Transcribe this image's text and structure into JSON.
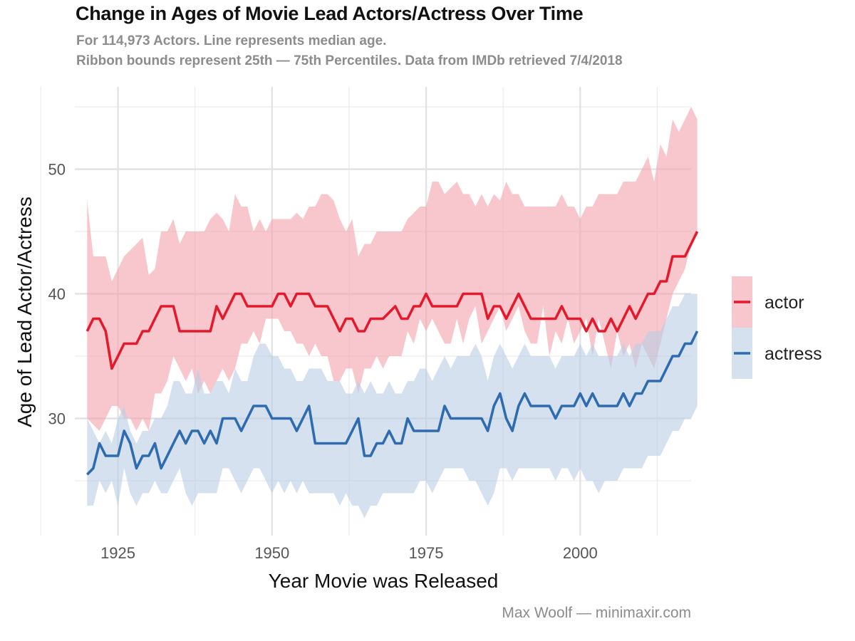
{
  "chart_data": {
    "type": "line",
    "title": "Change in Ages of Movie Lead Actors/Actress Over Time",
    "subtitle": [
      "For 114,973 Actors. Line represents median age.",
      "Ribbon bounds represent 25th — 75th Percentiles. Data from IMDb retrieved 7/4/2018"
    ],
    "xlabel": "Year Movie was Released",
    "ylabel": "Age of Lead Actor/Actress",
    "caption": "Max Woolf — minimaxir.com",
    "xlim": [
      1918,
      2018
    ],
    "ylim": [
      20.6,
      56.6
    ],
    "x_ticks": [
      1925,
      1950,
      1975,
      2000
    ],
    "y_ticks": [
      30,
      40,
      50
    ],
    "grid": true,
    "legend_position": "right",
    "series": [
      {
        "name": "actor",
        "color": "#E41A2C",
        "ribbon_color": "#F4A2AE",
        "points": [
          [
            1920,
            37,
            47.5,
            30
          ],
          [
            1921,
            38,
            43,
            29.5
          ],
          [
            1922,
            38,
            43,
            29
          ],
          [
            1923,
            37,
            43,
            30
          ],
          [
            1924,
            34,
            41,
            31
          ],
          [
            1925,
            35,
            42,
            31
          ],
          [
            1926,
            36,
            43,
            30
          ],
          [
            1927,
            36,
            43.5,
            30
          ],
          [
            1928,
            36,
            44,
            29
          ],
          [
            1929,
            37,
            44.5,
            30
          ],
          [
            1930,
            37,
            41.5,
            29
          ],
          [
            1931,
            38,
            42,
            32
          ],
          [
            1932,
            39,
            45,
            32
          ],
          [
            1933,
            39,
            45,
            33
          ],
          [
            1934,
            39,
            46,
            35
          ],
          [
            1935,
            37,
            44,
            34
          ],
          [
            1936,
            37,
            45,
            33
          ],
          [
            1937,
            37,
            45,
            34
          ],
          [
            1938,
            37,
            45,
            32
          ],
          [
            1939,
            37,
            45,
            33
          ],
          [
            1940,
            37,
            46,
            32
          ],
          [
            1941,
            39,
            46.5,
            33
          ],
          [
            1942,
            38,
            46,
            34
          ],
          [
            1943,
            39,
            45,
            33
          ],
          [
            1944,
            40,
            48,
            34
          ],
          [
            1945,
            40,
            47,
            36
          ],
          [
            1946,
            39,
            47,
            36
          ],
          [
            1947,
            39,
            45,
            37
          ],
          [
            1948,
            39,
            46,
            36
          ],
          [
            1949,
            39,
            45,
            38
          ],
          [
            1950,
            39,
            46,
            38
          ],
          [
            1951,
            40,
            46,
            38
          ],
          [
            1952,
            40,
            46,
            37
          ],
          [
            1953,
            39,
            46,
            37
          ],
          [
            1954,
            40,
            46.5,
            36
          ],
          [
            1955,
            40,
            46,
            36
          ],
          [
            1956,
            40,
            47,
            35
          ],
          [
            1957,
            39,
            47,
            36
          ],
          [
            1958,
            39,
            48,
            35
          ],
          [
            1959,
            39,
            48,
            35
          ],
          [
            1960,
            38,
            47.5,
            33
          ],
          [
            1961,
            37,
            46,
            33
          ],
          [
            1962,
            38,
            45,
            34
          ],
          [
            1963,
            38,
            46,
            34
          ],
          [
            1964,
            37,
            43,
            32
          ],
          [
            1965,
            37,
            44,
            34
          ],
          [
            1966,
            38,
            44,
            34
          ],
          [
            1967,
            38,
            45,
            35
          ],
          [
            1968,
            38,
            45,
            34
          ],
          [
            1969,
            38.5,
            45,
            35
          ],
          [
            1970,
            39,
            45,
            35
          ],
          [
            1971,
            38,
            45,
            35
          ],
          [
            1972,
            38,
            46,
            37
          ],
          [
            1973,
            39,
            46.5,
            36
          ],
          [
            1974,
            39,
            47,
            38
          ],
          [
            1975,
            40,
            47,
            37
          ],
          [
            1976,
            39,
            49,
            38
          ],
          [
            1977,
            39,
            49,
            37
          ],
          [
            1978,
            39,
            48,
            36
          ],
          [
            1979,
            39,
            48.5,
            36
          ],
          [
            1980,
            39,
            49,
            38
          ],
          [
            1981,
            40,
            48,
            36
          ],
          [
            1982,
            40,
            48,
            38
          ],
          [
            1983,
            40,
            47,
            39
          ],
          [
            1984,
            40,
            48,
            36
          ],
          [
            1985,
            38,
            47,
            37
          ],
          [
            1986,
            39,
            48,
            38
          ],
          [
            1987,
            39,
            47.5,
            39
          ],
          [
            1988,
            38,
            49,
            37
          ],
          [
            1989,
            39,
            48,
            38
          ],
          [
            1990,
            40,
            48,
            39
          ],
          [
            1991,
            39,
            47,
            37
          ],
          [
            1992,
            38,
            47,
            36
          ],
          [
            1993,
            38,
            47,
            36
          ],
          [
            1994,
            38,
            47,
            39
          ],
          [
            1995,
            38,
            47,
            35
          ],
          [
            1996,
            38,
            47,
            37
          ],
          [
            1997,
            39,
            48,
            36
          ],
          [
            1998,
            38,
            47,
            38
          ],
          [
            1999,
            38,
            47,
            36
          ],
          [
            2000,
            38,
            46,
            37
          ],
          [
            2001,
            37,
            47,
            38
          ],
          [
            2002,
            38,
            47,
            35
          ],
          [
            2003,
            37,
            48,
            38
          ],
          [
            2004,
            37,
            48,
            36
          ],
          [
            2005,
            38,
            48,
            34
          ],
          [
            2006,
            37,
            48,
            37
          ],
          [
            2007,
            38,
            49,
            35
          ],
          [
            2008,
            39,
            49,
            36
          ],
          [
            2009,
            38,
            49,
            34
          ],
          [
            2010,
            39,
            50,
            36
          ],
          [
            2011,
            40,
            51,
            35
          ],
          [
            2012,
            40,
            49,
            34
          ],
          [
            2013,
            41,
            52,
            36
          ],
          [
            2014,
            41,
            51,
            38
          ],
          [
            2015,
            43,
            54,
            40
          ],
          [
            2016,
            43,
            53,
            41
          ],
          [
            2017,
            43,
            54,
            42
          ],
          [
            2018,
            44,
            55,
            44
          ],
          [
            2019,
            45,
            54,
            45
          ]
        ]
      },
      {
        "name": "actress",
        "color": "#2E6BAF",
        "ribbon_color": "#B9CDE5",
        "points": [
          [
            1920,
            25.5,
            30,
            23
          ],
          [
            1921,
            26,
            29,
            23
          ],
          [
            1922,
            28,
            28,
            25
          ],
          [
            1923,
            27,
            29,
            24
          ],
          [
            1924,
            27,
            28,
            25
          ],
          [
            1925,
            27,
            30,
            23
          ],
          [
            1926,
            29,
            31,
            26
          ],
          [
            1927,
            28,
            29,
            24
          ],
          [
            1928,
            26,
            28,
            23
          ],
          [
            1929,
            27,
            29,
            24
          ],
          [
            1930,
            27,
            29,
            24
          ],
          [
            1931,
            28,
            30,
            25
          ],
          [
            1932,
            26,
            30,
            24
          ],
          [
            1933,
            27,
            31,
            24
          ],
          [
            1934,
            28,
            33,
            25
          ],
          [
            1935,
            29,
            33,
            26
          ],
          [
            1936,
            28,
            32,
            24
          ],
          [
            1937,
            29,
            32,
            23
          ],
          [
            1938,
            29,
            34,
            24
          ],
          [
            1939,
            28,
            32,
            24
          ],
          [
            1940,
            29,
            32,
            24
          ],
          [
            1941,
            28,
            33,
            24
          ],
          [
            1942,
            30,
            33,
            26
          ],
          [
            1943,
            30,
            32,
            26
          ],
          [
            1944,
            30,
            34,
            25
          ],
          [
            1945,
            29,
            33,
            24
          ],
          [
            1946,
            30,
            33,
            25
          ],
          [
            1947,
            31,
            35,
            26
          ],
          [
            1948,
            31,
            36,
            26
          ],
          [
            1949,
            31,
            36,
            25
          ],
          [
            1950,
            30,
            35,
            24
          ],
          [
            1951,
            30,
            35,
            25
          ],
          [
            1952,
            30,
            34,
            24
          ],
          [
            1953,
            30,
            34,
            25
          ],
          [
            1954,
            29,
            33,
            24
          ],
          [
            1955,
            30,
            33,
            25
          ],
          [
            1956,
            31,
            34,
            24
          ],
          [
            1957,
            28,
            34,
            24
          ],
          [
            1958,
            28,
            34,
            24
          ],
          [
            1959,
            28,
            33,
            24
          ],
          [
            1960,
            28,
            33,
            24
          ],
          [
            1961,
            28,
            33,
            23
          ],
          [
            1962,
            28,
            32,
            24
          ],
          [
            1963,
            29,
            32,
            23
          ],
          [
            1964,
            30,
            33,
            23
          ],
          [
            1965,
            27,
            32,
            22
          ],
          [
            1966,
            27,
            33,
            23
          ],
          [
            1967,
            28,
            32,
            23
          ],
          [
            1968,
            28,
            32,
            24
          ],
          [
            1969,
            29,
            33,
            24
          ],
          [
            1970,
            28,
            32,
            24
          ],
          [
            1971,
            28,
            32,
            24
          ],
          [
            1972,
            30,
            33,
            24
          ],
          [
            1973,
            29,
            33,
            24
          ],
          [
            1974,
            29,
            34,
            25
          ],
          [
            1975,
            29,
            34,
            25
          ],
          [
            1976,
            29,
            33,
            24
          ],
          [
            1977,
            29,
            34,
            25
          ],
          [
            1978,
            31,
            35,
            26
          ],
          [
            1979,
            30,
            34,
            26
          ],
          [
            1980,
            30,
            35,
            26
          ],
          [
            1981,
            30,
            35,
            26
          ],
          [
            1982,
            30,
            35,
            25
          ],
          [
            1983,
            30,
            36,
            25
          ],
          [
            1984,
            30,
            35,
            24
          ],
          [
            1985,
            29,
            33,
            23
          ],
          [
            1986,
            31,
            35,
            24
          ],
          [
            1987,
            32,
            36,
            26
          ],
          [
            1988,
            30,
            35,
            26
          ],
          [
            1989,
            29,
            34,
            25
          ],
          [
            1990,
            31,
            35,
            26
          ],
          [
            1991,
            32,
            36,
            26
          ],
          [
            1992,
            31,
            35,
            26
          ],
          [
            1993,
            31,
            35,
            26
          ],
          [
            1994,
            31,
            35,
            26
          ],
          [
            1995,
            31,
            35,
            26
          ],
          [
            1996,
            30,
            34,
            25
          ],
          [
            1997,
            31,
            35,
            26
          ],
          [
            1998,
            31,
            35,
            26
          ],
          [
            1999,
            31,
            35,
            25
          ],
          [
            2000,
            32,
            36,
            26
          ],
          [
            2001,
            31,
            35,
            25
          ],
          [
            2002,
            32,
            36,
            25
          ],
          [
            2003,
            31,
            35,
            24
          ],
          [
            2004,
            31,
            35,
            25
          ],
          [
            2005,
            31,
            35,
            25
          ],
          [
            2006,
            31,
            35,
            25
          ],
          [
            2007,
            32,
            36,
            26
          ],
          [
            2008,
            31,
            35,
            26
          ],
          [
            2009,
            32,
            36,
            26
          ],
          [
            2010,
            32,
            36,
            26
          ],
          [
            2011,
            33,
            37,
            27
          ],
          [
            2012,
            33,
            37,
            27
          ],
          [
            2013,
            33,
            37,
            27
          ],
          [
            2014,
            34,
            38,
            28
          ],
          [
            2015,
            35,
            39,
            29
          ],
          [
            2016,
            35,
            39,
            29
          ],
          [
            2017,
            36,
            40,
            30
          ],
          [
            2018,
            36,
            40,
            30
          ],
          [
            2019,
            37,
            40,
            31
          ]
        ]
      }
    ]
  }
}
